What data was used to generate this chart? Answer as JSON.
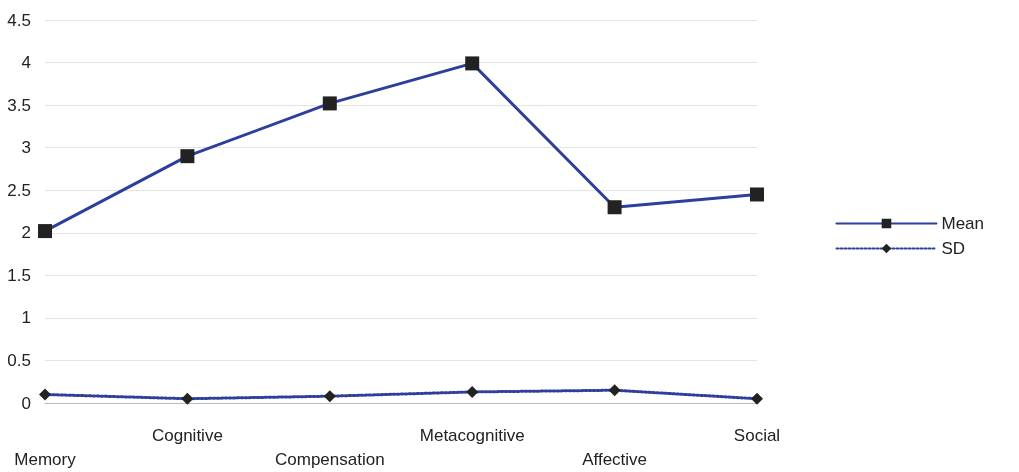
{
  "chart_data": {
    "type": "line",
    "categories": [
      "Memory",
      "Cognitive",
      "Compensation",
      "Metacognitive",
      "Affective",
      "Social"
    ],
    "series": [
      {
        "name": "Mean",
        "color": "#2c3f9c",
        "marker": "square",
        "line_style": "solid",
        "values": [
          2.02,
          2.9,
          3.52,
          3.99,
          2.3,
          2.45
        ]
      },
      {
        "name": "SD",
        "color": "#2c3f9c",
        "marker": "diamond",
        "line_style": "dotted",
        "values": [
          0.1,
          0.05,
          0.08,
          0.13,
          0.15,
          0.05
        ]
      }
    ],
    "ylim": [
      0,
      4.5
    ],
    "yticks": [
      0,
      0.5,
      1,
      1.5,
      2,
      2.5,
      3,
      3.5,
      4,
      4.5
    ],
    "grid": "y",
    "legend": "right"
  }
}
